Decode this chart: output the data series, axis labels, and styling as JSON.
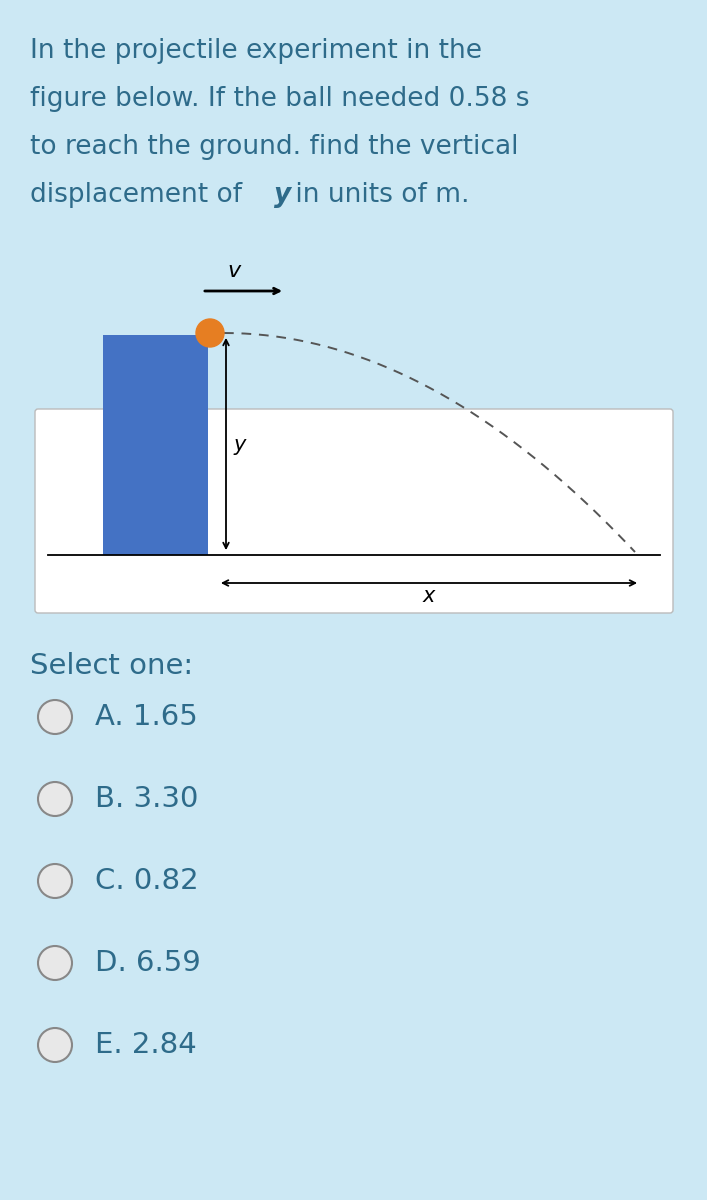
{
  "background_color": "#cce8f4",
  "text_color": "#2e6b8a",
  "fig_bg_color": "#ffffff",
  "blue_rect_color": "#4472c4",
  "ball_color": "#e67e22",
  "dashed_color": "#555555",
  "question_lines_plain": [
    "In the projectile experiment in the",
    "figure below. If the ball needed 0.58 s",
    "to reach the ground. find the vertical"
  ],
  "line4_prefix": "displacement of ",
  "line4_bold": "y",
  "line4_suffix": " in units of m.",
  "select_one_text": "Select one:",
  "options": [
    {
      "label": "A.",
      "value": "1.65"
    },
    {
      "label": "B.",
      "value": "3.30"
    },
    {
      "label": "C.",
      "value": "0.82"
    },
    {
      "label": "D.",
      "value": "6.59"
    },
    {
      "label": "E.",
      "value": "2.84"
    }
  ],
  "question_fontsize": 19,
  "option_fontsize": 21,
  "select_fontsize": 21
}
